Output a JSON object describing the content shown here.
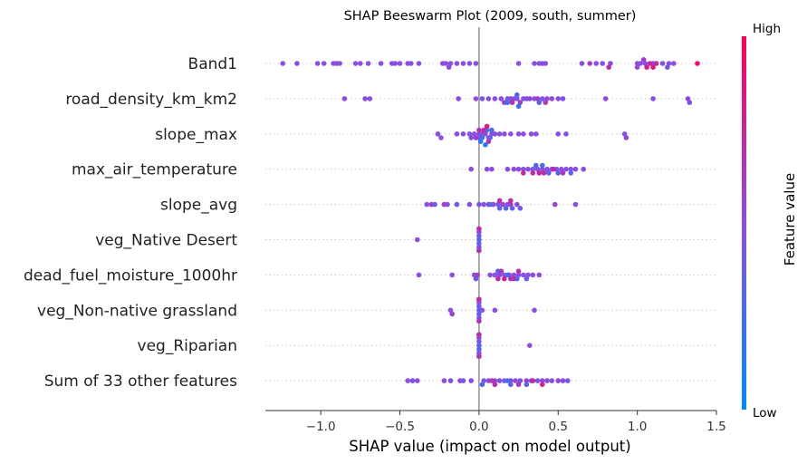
{
  "chart_data": {
    "type": "scatter",
    "subtype": "shap-beeswarm",
    "title": "SHAP Beeswarm Plot (2009, south, summer)",
    "xlabel": "SHAP value (impact on model output)",
    "xlim": [
      -1.35,
      1.5
    ],
    "xticks": [
      {
        "value": -1.0,
        "label": "−1.0"
      },
      {
        "value": -0.5,
        "label": "−0.5"
      },
      {
        "value": 0.0,
        "label": "0.0"
      },
      {
        "value": 0.5,
        "label": "0.5"
      },
      {
        "value": 1.0,
        "label": "1.0"
      },
      {
        "value": 1.5,
        "label": "1.5"
      }
    ],
    "colorbar": {
      "label": "Feature value",
      "high": "High",
      "low": "Low",
      "colors": [
        "#008bfb",
        "#ff0052"
      ]
    },
    "features": [
      {
        "name": "Band1",
        "points": [
          [
            -1.24,
            0.5
          ],
          [
            -1.15,
            0.5
          ],
          [
            -1.02,
            0.5
          ],
          [
            -0.98,
            0.5
          ],
          [
            -0.92,
            0.5
          ],
          [
            -0.9,
            0.5
          ],
          [
            -0.88,
            0.5
          ],
          [
            -0.78,
            0.5
          ],
          [
            -0.75,
            0.5
          ],
          [
            -0.7,
            0.5
          ],
          [
            -0.62,
            0.5
          ],
          [
            -0.55,
            0.5
          ],
          [
            -0.53,
            0.5
          ],
          [
            -0.5,
            0.5
          ],
          [
            -0.45,
            0.5
          ],
          [
            -0.43,
            0.5
          ],
          [
            -0.38,
            0.5
          ],
          [
            -0.23,
            0.5
          ],
          [
            -0.21,
            0.5
          ],
          [
            -0.18,
            0.5
          ],
          [
            -0.14,
            0.5
          ],
          [
            -0.1,
            0.5
          ],
          [
            -0.06,
            0.5
          ],
          [
            -0.02,
            0.5
          ],
          [
            -0.19,
            0.5
          ],
          [
            0.25,
            0.5
          ],
          [
            0.35,
            0.5
          ],
          [
            0.38,
            0.5
          ],
          [
            0.4,
            0.5
          ],
          [
            0.42,
            0.5
          ],
          [
            0.65,
            0.5
          ],
          [
            0.74,
            0.5
          ],
          [
            0.78,
            0.5
          ],
          [
            0.83,
            0.5
          ],
          [
            1.0,
            0.5
          ],
          [
            1.02,
            0.5
          ],
          [
            1.05,
            0.5
          ],
          [
            1.1,
            0.5
          ],
          [
            1.16,
            0.5
          ],
          [
            1.2,
            0.5
          ],
          [
            1.23,
            0.5
          ],
          [
            1.08,
            0.75
          ],
          [
            1.06,
            0.8
          ],
          [
            1.12,
            0.7
          ],
          [
            1.1,
            0.85
          ],
          [
            1.38,
            0.9
          ],
          [
            1.04,
            0.6
          ],
          [
            1.0,
            0.55
          ],
          [
            0.82,
            0.7
          ],
          [
            0.7,
            0.6
          ],
          [
            1.19,
            0.4
          ]
        ]
      },
      {
        "name": "road_density_km_km2",
        "points": [
          [
            -0.85,
            0.5
          ],
          [
            -0.72,
            0.5
          ],
          [
            -0.69,
            0.5
          ],
          [
            -0.13,
            0.5
          ],
          [
            -0.02,
            0.5
          ],
          [
            0.02,
            0.4
          ],
          [
            0.06,
            0.5
          ],
          [
            0.1,
            0.5
          ],
          [
            0.14,
            0.5
          ],
          [
            0.16,
            0.6
          ],
          [
            0.18,
            0.4
          ],
          [
            0.2,
            0.55
          ],
          [
            0.22,
            0.45
          ],
          [
            0.24,
            0.5
          ],
          [
            0.26,
            0.6
          ],
          [
            0.28,
            0.5
          ],
          [
            0.3,
            0.4
          ],
          [
            0.32,
            0.55
          ],
          [
            0.35,
            0.5
          ],
          [
            0.37,
            0.6
          ],
          [
            0.4,
            0.45
          ],
          [
            0.43,
            0.5
          ],
          [
            0.46,
            0.55
          ],
          [
            0.5,
            0.5
          ],
          [
            0.53,
            0.45
          ],
          [
            0.8,
            0.5
          ],
          [
            1.1,
            0.5
          ],
          [
            1.32,
            0.55
          ],
          [
            1.33,
            0.45
          ],
          [
            0.21,
            0.7
          ],
          [
            0.24,
            0.3
          ],
          [
            0.18,
            0.2
          ],
          [
            0.25,
            0.2
          ],
          [
            0.42,
            0.6
          ],
          [
            0.38,
            0.35
          ]
        ]
      },
      {
        "name": "slope_max",
        "points": [
          [
            -0.26,
            0.5
          ],
          [
            -0.24,
            0.5
          ],
          [
            -0.14,
            0.5
          ],
          [
            -0.1,
            0.5
          ],
          [
            -0.06,
            0.5
          ],
          [
            -0.03,
            0.5
          ],
          [
            0.0,
            0.5
          ],
          [
            0.02,
            0.5
          ],
          [
            0.04,
            0.5
          ],
          [
            0.06,
            0.5
          ],
          [
            0.08,
            0.5
          ],
          [
            0.1,
            0.5
          ],
          [
            0.13,
            0.5
          ],
          [
            0.16,
            0.5
          ],
          [
            0.2,
            0.5
          ],
          [
            0.25,
            0.5
          ],
          [
            0.28,
            0.5
          ],
          [
            0.33,
            0.5
          ],
          [
            0.36,
            0.5
          ],
          [
            0.5,
            0.5
          ],
          [
            0.55,
            0.5
          ],
          [
            0.92,
            0.45
          ],
          [
            0.93,
            0.55
          ],
          [
            0.0,
            0.35
          ],
          [
            0.02,
            0.25
          ],
          [
            0.05,
            0.3
          ],
          [
            0.07,
            0.35
          ],
          [
            0.0,
            0.65
          ],
          [
            0.03,
            0.7
          ],
          [
            0.06,
            0.65
          ],
          [
            -0.02,
            0.6
          ],
          [
            0.05,
            0.8
          ],
          [
            0.01,
            0.2
          ],
          [
            0.04,
            0.15
          ],
          [
            0.08,
            0.25
          ],
          [
            -0.05,
            0.4
          ]
        ]
      },
      {
        "name": "max_air_temperature",
        "points": [
          [
            -0.05,
            0.5
          ],
          [
            0.05,
            0.5
          ],
          [
            0.08,
            0.5
          ],
          [
            0.18,
            0.5
          ],
          [
            0.22,
            0.5
          ],
          [
            0.25,
            0.5
          ],
          [
            0.28,
            0.5
          ],
          [
            0.31,
            0.5
          ],
          [
            0.34,
            0.5
          ],
          [
            0.37,
            0.5
          ],
          [
            0.4,
            0.5
          ],
          [
            0.43,
            0.5
          ],
          [
            0.46,
            0.5
          ],
          [
            0.49,
            0.5
          ],
          [
            0.52,
            0.5
          ],
          [
            0.55,
            0.5
          ],
          [
            0.58,
            0.5
          ],
          [
            0.61,
            0.5
          ],
          [
            0.66,
            0.5
          ],
          [
            0.34,
            0.7
          ],
          [
            0.38,
            0.75
          ],
          [
            0.41,
            0.7
          ],
          [
            0.36,
            0.3
          ],
          [
            0.4,
            0.25
          ],
          [
            0.44,
            0.35
          ],
          [
            0.28,
            0.75
          ],
          [
            0.47,
            0.7
          ],
          [
            0.5,
            0.3
          ],
          [
            0.53,
            0.65
          ],
          [
            0.58,
            0.35
          ]
        ]
      },
      {
        "name": "slope_avg",
        "points": [
          [
            -0.33,
            0.45
          ],
          [
            -0.3,
            0.6
          ],
          [
            -0.28,
            0.4
          ],
          [
            -0.22,
            0.6
          ],
          [
            -0.2,
            0.5
          ],
          [
            -0.14,
            0.4
          ],
          [
            -0.06,
            0.5
          ],
          [
            0.0,
            0.45
          ],
          [
            0.03,
            0.5
          ],
          [
            0.06,
            0.55
          ],
          [
            0.09,
            0.5
          ],
          [
            0.12,
            0.45
          ],
          [
            0.15,
            0.55
          ],
          [
            0.18,
            0.5
          ],
          [
            0.2,
            0.6
          ],
          [
            0.24,
            0.5
          ],
          [
            0.26,
            0.4
          ],
          [
            0.13,
            0.35
          ],
          [
            0.17,
            0.3
          ],
          [
            0.21,
            0.35
          ],
          [
            0.13,
            0.7
          ],
          [
            0.2,
            0.7
          ],
          [
            0.48,
            0.55
          ],
          [
            0.61,
            0.5
          ],
          [
            0.07,
            0.3
          ]
        ]
      },
      {
        "name": "veg_Native Desert ",
        "points": [
          [
            -0.39,
            0.5
          ],
          [
            0.0,
            0.3
          ],
          [
            0.0,
            0.35
          ],
          [
            0.0,
            0.4
          ],
          [
            0.0,
            0.45
          ],
          [
            0.0,
            0.5
          ],
          [
            0.0,
            0.55
          ],
          [
            0.0,
            0.6
          ],
          [
            0.0,
            0.65
          ],
          [
            0.0,
            0.7
          ]
        ]
      },
      {
        "name": "dead_fuel_moisture_1000hr",
        "points": [
          [
            -0.38,
            0.5
          ],
          [
            -0.17,
            0.5
          ],
          [
            -0.03,
            0.5
          ],
          [
            0.07,
            0.5
          ],
          [
            0.1,
            0.5
          ],
          [
            0.13,
            0.5
          ],
          [
            0.16,
            0.5
          ],
          [
            0.19,
            0.5
          ],
          [
            0.22,
            0.5
          ],
          [
            0.25,
            0.5
          ],
          [
            0.28,
            0.5
          ],
          [
            0.31,
            0.5
          ],
          [
            0.34,
            0.5
          ],
          [
            0.38,
            0.5
          ],
          [
            0.12,
            0.7
          ],
          [
            0.16,
            0.75
          ],
          [
            0.2,
            0.7
          ],
          [
            0.12,
            0.3
          ],
          [
            0.18,
            0.3
          ],
          [
            0.24,
            0.25
          ],
          [
            0.22,
            0.65
          ],
          [
            0.3,
            0.35
          ],
          [
            0.25,
            0.7
          ],
          [
            0.14,
            0.65
          ],
          [
            -0.01,
            0.6
          ],
          [
            -0.02,
            0.4
          ]
        ]
      },
      {
        "name": "veg_Non-native grassland ",
        "points": [
          [
            -0.18,
            0.5
          ],
          [
            -0.17,
            0.55
          ],
          [
            0.0,
            0.3
          ],
          [
            0.0,
            0.35
          ],
          [
            0.0,
            0.4
          ],
          [
            0.0,
            0.45
          ],
          [
            0.0,
            0.5
          ],
          [
            0.0,
            0.55
          ],
          [
            0.0,
            0.6
          ],
          [
            0.0,
            0.65
          ],
          [
            0.0,
            0.7
          ],
          [
            0.02,
            0.5
          ],
          [
            0.1,
            0.5
          ],
          [
            0.35,
            0.5
          ]
        ]
      },
      {
        "name": "veg_Riparian ",
        "points": [
          [
            0.0,
            0.3
          ],
          [
            0.0,
            0.35
          ],
          [
            0.0,
            0.4
          ],
          [
            0.0,
            0.45
          ],
          [
            0.0,
            0.5
          ],
          [
            0.0,
            0.55
          ],
          [
            0.0,
            0.6
          ],
          [
            0.0,
            0.65
          ],
          [
            0.0,
            0.7
          ],
          [
            0.32,
            0.5
          ]
        ]
      },
      {
        "name": "Sum of 33 other features",
        "points": [
          [
            -0.45,
            0.5
          ],
          [
            -0.42,
            0.45
          ],
          [
            -0.39,
            0.5
          ],
          [
            -0.22,
            0.5
          ],
          [
            -0.18,
            0.45
          ],
          [
            -0.12,
            0.55
          ],
          [
            -0.1,
            0.4
          ],
          [
            -0.05,
            0.5
          ],
          [
            0.03,
            0.45
          ],
          [
            0.06,
            0.5
          ],
          [
            0.1,
            0.55
          ],
          [
            0.13,
            0.45
          ],
          [
            0.16,
            0.5
          ],
          [
            0.2,
            0.55
          ],
          [
            0.23,
            0.5
          ],
          [
            0.26,
            0.45
          ],
          [
            0.3,
            0.55
          ],
          [
            0.33,
            0.5
          ],
          [
            0.37,
            0.45
          ],
          [
            0.4,
            0.55
          ],
          [
            0.43,
            0.5
          ],
          [
            0.46,
            0.45
          ],
          [
            0.5,
            0.55
          ],
          [
            0.53,
            0.5
          ],
          [
            0.56,
            0.45
          ],
          [
            0.2,
            0.35
          ],
          [
            0.3,
            0.3
          ],
          [
            0.1,
            0.7
          ],
          [
            0.25,
            0.65
          ],
          [
            0.34,
            0.72
          ],
          [
            0.18,
            0.25
          ],
          [
            0.4,
            0.75
          ],
          [
            0.08,
            0.65
          ],
          [
            0.02,
            0.3
          ]
        ]
      }
    ]
  }
}
